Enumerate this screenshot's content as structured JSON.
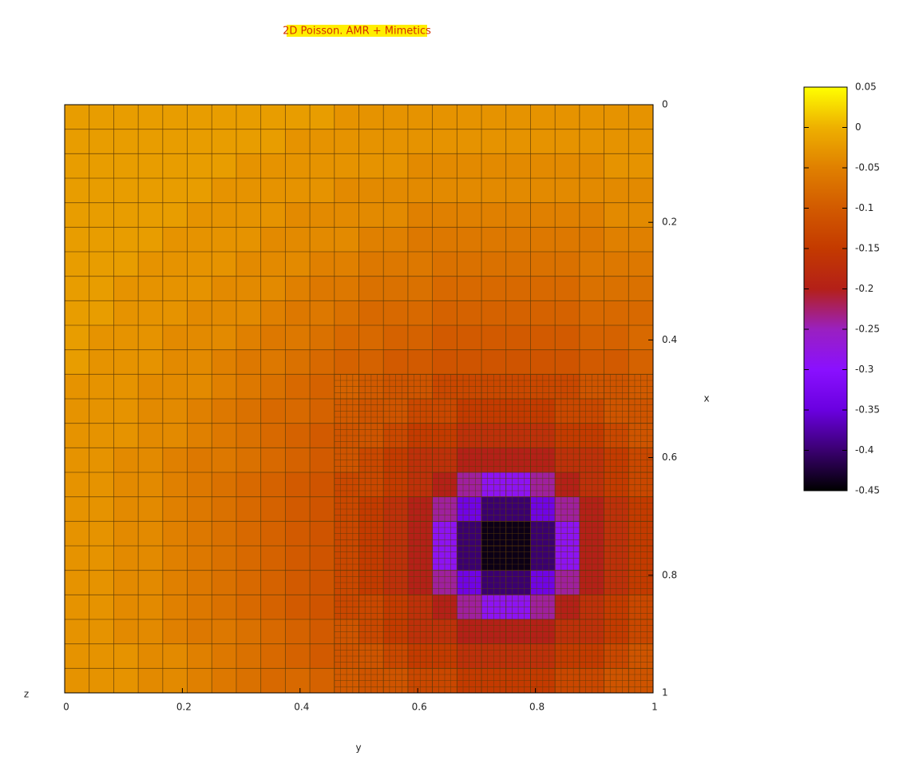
{
  "chart_data": {
    "type": "heatmap",
    "title": "2D Poisson. AMR + Mimetics",
    "xlabel": "y",
    "ylabel": "x",
    "zlabel": "z",
    "xlim": [
      0,
      1
    ],
    "xticks": [
      0,
      0.2,
      0.4,
      0.6,
      0.8,
      1
    ],
    "ylim": [
      0,
      1
    ],
    "yticks": [
      0,
      0.2,
      0.4,
      0.6,
      0.8,
      1
    ],
    "cblim": [
      -0.45,
      0.05
    ],
    "cbticks": [
      0.05,
      0,
      -0.05,
      -0.1,
      -0.15,
      -0.2,
      -0.25,
      -0.3,
      -0.35,
      -0.4,
      -0.45
    ],
    "palette": [
      "#000000",
      "#3a0070",
      "#6a00e0",
      "#8a10ff",
      "#9a20c0",
      "#b42018",
      "#c43a00",
      "#d25a00",
      "#e08000",
      "#eeb000",
      "#ffff00"
    ],
    "values": [
      [
        -0.02,
        -0.02,
        -0.02,
        -0.02,
        -0.02,
        -0.02,
        -0.02,
        -0.02,
        -0.02,
        -0.02,
        -0.02,
        -0.03,
        -0.03,
        -0.03,
        -0.03,
        -0.03,
        -0.03,
        -0.03,
        -0.03,
        -0.03,
        -0.03,
        -0.03,
        -0.03,
        -0.03
      ],
      [
        -0.02,
        -0.02,
        -0.02,
        -0.02,
        -0.02,
        -0.02,
        -0.02,
        -0.02,
        -0.02,
        -0.03,
        -0.03,
        -0.03,
        -0.03,
        -0.03,
        -0.03,
        -0.03,
        -0.03,
        -0.03,
        -0.03,
        -0.03,
        -0.03,
        -0.03,
        -0.03,
        -0.03
      ],
      [
        -0.02,
        -0.02,
        -0.02,
        -0.02,
        -0.02,
        -0.02,
        -0.02,
        -0.03,
        -0.03,
        -0.03,
        -0.03,
        -0.03,
        -0.03,
        -0.03,
        -0.04,
        -0.04,
        -0.04,
        -0.04,
        -0.04,
        -0.04,
        -0.04,
        -0.04,
        -0.03,
        -0.03
      ],
      [
        -0.02,
        -0.02,
        -0.02,
        -0.02,
        -0.02,
        -0.02,
        -0.03,
        -0.03,
        -0.03,
        -0.03,
        -0.03,
        -0.04,
        -0.04,
        -0.04,
        -0.04,
        -0.04,
        -0.04,
        -0.04,
        -0.04,
        -0.04,
        -0.04,
        -0.04,
        -0.04,
        -0.04
      ],
      [
        -0.02,
        -0.02,
        -0.02,
        -0.02,
        -0.02,
        -0.03,
        -0.03,
        -0.03,
        -0.03,
        -0.04,
        -0.04,
        -0.04,
        -0.04,
        -0.04,
        -0.05,
        -0.05,
        -0.05,
        -0.05,
        -0.05,
        -0.05,
        -0.05,
        -0.05,
        -0.04,
        -0.04
      ],
      [
        -0.02,
        -0.02,
        -0.02,
        -0.02,
        -0.03,
        -0.03,
        -0.03,
        -0.03,
        -0.04,
        -0.04,
        -0.04,
        -0.04,
        -0.05,
        -0.05,
        -0.06,
        -0.06,
        -0.06,
        -0.06,
        -0.06,
        -0.06,
        -0.06,
        -0.06,
        -0.05,
        -0.05
      ],
      [
        -0.02,
        -0.02,
        -0.02,
        -0.03,
        -0.03,
        -0.03,
        -0.03,
        -0.04,
        -0.04,
        -0.04,
        -0.05,
        -0.05,
        -0.06,
        -0.06,
        -0.06,
        -0.07,
        -0.07,
        -0.07,
        -0.07,
        -0.07,
        -0.07,
        -0.06,
        -0.06,
        -0.06
      ],
      [
        -0.02,
        -0.02,
        -0.03,
        -0.03,
        -0.03,
        -0.03,
        -0.04,
        -0.04,
        -0.04,
        -0.05,
        -0.06,
        -0.06,
        -0.07,
        -0.07,
        -0.07,
        -0.08,
        -0.08,
        -0.08,
        -0.08,
        -0.08,
        -0.08,
        -0.07,
        -0.07,
        -0.07
      ],
      [
        -0.02,
        -0.02,
        -0.03,
        -0.03,
        -0.03,
        -0.04,
        -0.04,
        -0.04,
        -0.05,
        -0.06,
        -0.06,
        -0.07,
        -0.08,
        -0.08,
        -0.08,
        -0.09,
        -0.09,
        -0.09,
        -0.09,
        -0.09,
        -0.09,
        -0.08,
        -0.08,
        -0.08
      ],
      [
        -0.02,
        -0.03,
        -0.03,
        -0.03,
        -0.04,
        -0.04,
        -0.04,
        -0.05,
        -0.06,
        -0.06,
        -0.07,
        -0.08,
        -0.08,
        -0.09,
        -0.09,
        -0.1,
        -0.1,
        -0.1,
        -0.1,
        -0.1,
        -0.1,
        -0.09,
        -0.09,
        -0.08
      ],
      [
        -0.02,
        -0.03,
        -0.03,
        -0.03,
        -0.04,
        -0.04,
        -0.05,
        -0.06,
        -0.06,
        -0.07,
        -0.08,
        -0.09,
        -0.09,
        -0.1,
        -0.1,
        -0.11,
        -0.11,
        -0.11,
        -0.11,
        -0.11,
        -0.11,
        -0.1,
        -0.1,
        -0.09
      ],
      [
        -0.03,
        -0.03,
        -0.03,
        -0.04,
        -0.04,
        -0.04,
        -0.05,
        -0.06,
        -0.07,
        -0.08,
        -0.09,
        -0.09,
        -0.1,
        -0.11,
        -0.11,
        -0.13,
        -0.13,
        -0.13,
        -0.13,
        -0.13,
        -0.13,
        -0.11,
        -0.11,
        -0.1
      ],
      [
        -0.03,
        -0.03,
        -0.03,
        -0.04,
        -0.04,
        -0.05,
        -0.06,
        -0.07,
        -0.08,
        -0.08,
        -0.09,
        -0.1,
        -0.11,
        -0.11,
        -0.13,
        -0.13,
        -0.15,
        -0.15,
        -0.15,
        -0.15,
        -0.13,
        -0.13,
        -0.11,
        -0.11
      ],
      [
        -0.03,
        -0.03,
        -0.03,
        -0.04,
        -0.04,
        -0.05,
        -0.06,
        -0.07,
        -0.08,
        -0.09,
        -0.1,
        -0.11,
        -0.11,
        -0.13,
        -0.15,
        -0.15,
        -0.17,
        -0.17,
        -0.17,
        -0.17,
        -0.15,
        -0.15,
        -0.13,
        -0.11
      ],
      [
        -0.03,
        -0.03,
        -0.04,
        -0.04,
        -0.05,
        -0.06,
        -0.06,
        -0.07,
        -0.08,
        -0.09,
        -0.1,
        -0.11,
        -0.13,
        -0.15,
        -0.17,
        -0.17,
        -0.2,
        -0.2,
        -0.2,
        -0.2,
        -0.17,
        -0.17,
        -0.15,
        -0.13
      ],
      [
        -0.03,
        -0.03,
        -0.04,
        -0.04,
        -0.05,
        -0.06,
        -0.07,
        -0.08,
        -0.09,
        -0.1,
        -0.11,
        -0.13,
        -0.13,
        -0.15,
        -0.17,
        -0.2,
        -0.24,
        -0.29,
        -0.29,
        -0.24,
        -0.2,
        -0.17,
        -0.15,
        -0.13
      ],
      [
        -0.03,
        -0.03,
        -0.04,
        -0.04,
        -0.05,
        -0.06,
        -0.07,
        -0.08,
        -0.09,
        -0.1,
        -0.11,
        -0.13,
        -0.15,
        -0.17,
        -0.2,
        -0.24,
        -0.34,
        -0.4,
        -0.4,
        -0.34,
        -0.24,
        -0.2,
        -0.17,
        -0.15
      ],
      [
        -0.03,
        -0.03,
        -0.04,
        -0.04,
        -0.05,
        -0.06,
        -0.07,
        -0.08,
        -0.09,
        -0.1,
        -0.11,
        -0.13,
        -0.15,
        -0.17,
        -0.2,
        -0.29,
        -0.4,
        -0.44,
        -0.44,
        -0.4,
        -0.29,
        -0.2,
        -0.17,
        -0.15
      ],
      [
        -0.03,
        -0.03,
        -0.04,
        -0.04,
        -0.05,
        -0.06,
        -0.07,
        -0.08,
        -0.09,
        -0.1,
        -0.11,
        -0.13,
        -0.15,
        -0.17,
        -0.2,
        -0.29,
        -0.4,
        -0.44,
        -0.44,
        -0.4,
        -0.29,
        -0.2,
        -0.17,
        -0.15
      ],
      [
        -0.03,
        -0.03,
        -0.04,
        -0.04,
        -0.05,
        -0.06,
        -0.07,
        -0.08,
        -0.09,
        -0.1,
        -0.11,
        -0.13,
        -0.15,
        -0.17,
        -0.2,
        -0.24,
        -0.34,
        -0.4,
        -0.4,
        -0.34,
        -0.24,
        -0.2,
        -0.17,
        -0.15
      ],
      [
        -0.03,
        -0.03,
        -0.04,
        -0.04,
        -0.05,
        -0.06,
        -0.07,
        -0.08,
        -0.09,
        -0.1,
        -0.11,
        -0.13,
        -0.13,
        -0.15,
        -0.17,
        -0.2,
        -0.24,
        -0.29,
        -0.29,
        -0.24,
        -0.2,
        -0.17,
        -0.15,
        -0.13
      ],
      [
        -0.03,
        -0.03,
        -0.04,
        -0.04,
        -0.05,
        -0.06,
        -0.06,
        -0.07,
        -0.08,
        -0.09,
        -0.1,
        -0.11,
        -0.13,
        -0.15,
        -0.17,
        -0.17,
        -0.2,
        -0.2,
        -0.2,
        -0.2,
        -0.17,
        -0.17,
        -0.15,
        -0.13
      ],
      [
        -0.03,
        -0.03,
        -0.03,
        -0.04,
        -0.04,
        -0.05,
        -0.06,
        -0.07,
        -0.08,
        -0.09,
        -0.1,
        -0.11,
        -0.11,
        -0.13,
        -0.15,
        -0.15,
        -0.17,
        -0.17,
        -0.17,
        -0.17,
        -0.15,
        -0.15,
        -0.13,
        -0.11
      ],
      [
        -0.03,
        -0.03,
        -0.03,
        -0.04,
        -0.04,
        -0.05,
        -0.06,
        -0.07,
        -0.08,
        -0.08,
        -0.09,
        -0.1,
        -0.11,
        -0.11,
        -0.13,
        -0.13,
        -0.15,
        -0.15,
        -0.15,
        -0.15,
        -0.13,
        -0.13,
        -0.11,
        -0.11
      ]
    ]
  }
}
